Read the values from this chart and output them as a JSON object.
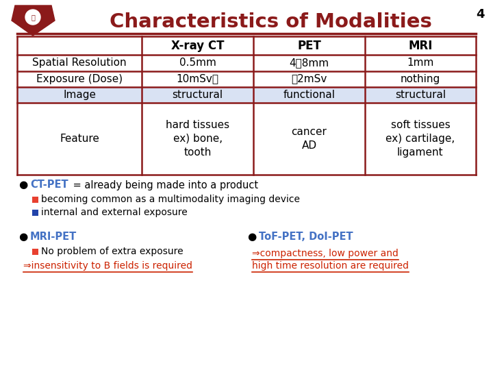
{
  "title": "Characteristics of Modalities",
  "slide_number": "4",
  "bg": "#ffffff",
  "title_color": "#8B1A1A",
  "underline_color": "#8B1A1A",
  "table_border": "#8B1A1A",
  "shaded_bg": "#D9E2F3",
  "headers": [
    "",
    "X-ray CT",
    "PET",
    "MRI"
  ],
  "rows": [
    [
      "Spatial Resolution",
      "0.5mm",
      "4～8mm",
      "1mm"
    ],
    [
      "Exposure (Dose)",
      "10mSv～",
      "～2mSv",
      "nothing"
    ],
    [
      "Image",
      "structural",
      "functional",
      "structural"
    ],
    [
      "Feature",
      "hard tissues\nex) bone,\ntooth",
      "cancer\nAD",
      "soft tissues\nex) cartilage,\nligament"
    ]
  ],
  "blue": "#4472C4",
  "red": "#CC2200",
  "black": "#000000",
  "orange_red": "#E84030",
  "dark_blue": "#2244AA",
  "ct_pet_label": "CT-PET",
  "ct_pet_rest": " = already being made into a product",
  "sub1_text": "becoming common as a multimodality imaging device",
  "sub2_text": "internal and external exposure",
  "mri_pet_label": "MRI-PET",
  "mri_sub_text": "No problem of extra exposure",
  "mri_arrow_text": "⇒insensitivity to B fields is required",
  "tof_label": "ToF-PET, DoI-PET",
  "tof_line1": "⇒compactness, low power and",
  "tof_line2": "high time resolution are required"
}
